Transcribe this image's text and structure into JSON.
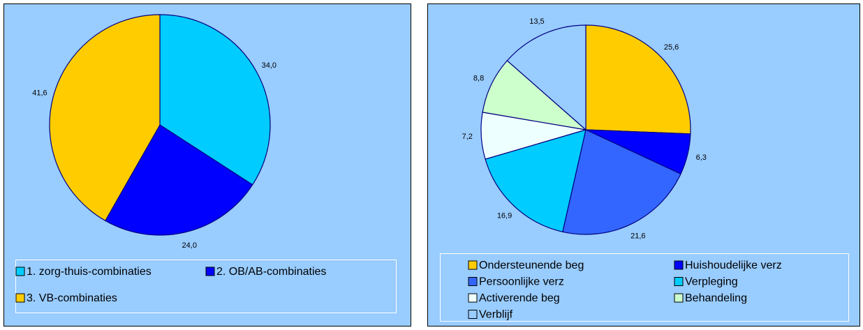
{
  "chart_data": [
    {
      "type": "pie",
      "categories": [
        "1. zorg-thuis-combinaties",
        "2. OB/AB-combinaties",
        "3. VB-combinaties"
      ],
      "values": [
        34.0,
        24.0,
        41.6
      ],
      "value_labels": [
        "34,0",
        "24,0",
        "41,6"
      ],
      "colors": [
        "#00CCFF",
        "#0000FF",
        "#FFCC00"
      ],
      "legend": "bottom"
    },
    {
      "type": "pie",
      "categories": [
        "Ondersteunende beg",
        "Huishoudelijke verz",
        "Persoonlijke verz",
        "Verpleging",
        "Activerende beg",
        "Behandeling",
        "Verblijf"
      ],
      "values": [
        25.6,
        6.3,
        21.6,
        16.9,
        7.2,
        8.8,
        13.5
      ],
      "value_labels": [
        "25,6",
        "6,3",
        "21,6",
        "16,9",
        "7,2",
        "8,8",
        "13,5"
      ],
      "colors": [
        "#FFCC00",
        "#0000FF",
        "#3366FF",
        "#00CCFF",
        "#EEFFFF",
        "#CCFFCC",
        "#99CCFF"
      ],
      "legend": "bottom"
    }
  ]
}
